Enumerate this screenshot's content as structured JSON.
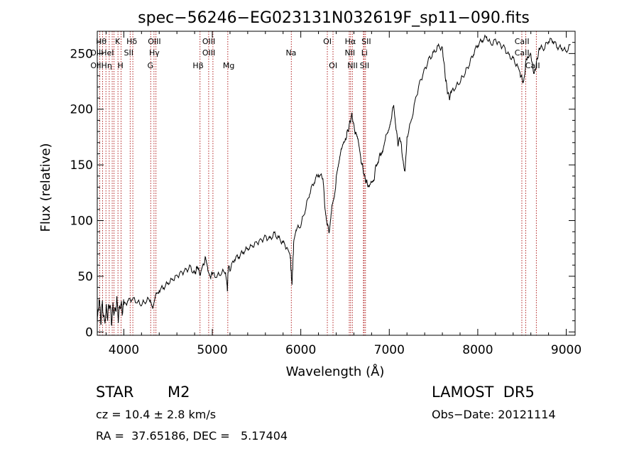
{
  "chart_data": {
    "type": "line",
    "title": "spec−56246−EG023131N032619F_sp11−090.fits",
    "xlabel": "Wavelength (Å)",
    "ylabel": "Flux (relative)",
    "xlim": [
      3700,
      9100
    ],
    "ylim": [
      -3,
      270
    ],
    "x_ticks": [
      4000,
      5000,
      6000,
      7000,
      8000,
      9000
    ],
    "y_ticks": [
      0,
      50,
      100,
      150,
      200,
      250
    ],
    "grid": false,
    "line_color": "#000000",
    "marker_color": "#b22222",
    "series": [
      {
        "x": [
          3700,
          3720,
          3740,
          3760,
          3780,
          3800,
          3820,
          3840,
          3860,
          3880,
          3900,
          3920,
          3940,
          3960,
          3980,
          4000,
          4050,
          4100,
          4150,
          4200,
          4250,
          4300,
          4330,
          4360,
          4400,
          4450,
          4500,
          4550,
          4600,
          4650,
          4700,
          4750,
          4800,
          4820,
          4850,
          4870,
          4900,
          4920,
          4950,
          4980,
          5000,
          5050,
          5100,
          5150,
          5170,
          5180,
          5200,
          5250,
          5300,
          5350,
          5400,
          5450,
          5500,
          5550,
          5600,
          5650,
          5700,
          5750,
          5800,
          5850,
          5880,
          5890,
          5900,
          5910,
          5920,
          5950,
          6000,
          6050,
          6100,
          6150,
          6200,
          6250,
          6270,
          6300,
          6320,
          6350,
          6380,
          6400,
          6430,
          6460,
          6500,
          6520,
          6540,
          6560,
          6580,
          6600,
          6620,
          6650,
          6680,
          6700,
          6720,
          6740,
          6760,
          6800,
          6830,
          6850,
          6880,
          6900,
          6930,
          6960,
          7000,
          7030,
          7050,
          7080,
          7100,
          7120,
          7140,
          7160,
          7180,
          7200,
          7250,
          7300,
          7350,
          7400,
          7450,
          7500,
          7550,
          7600,
          7620,
          7640,
          7660,
          7680,
          7700,
          7750,
          7800,
          7850,
          7900,
          7950,
          8000,
          8050,
          8100,
          8150,
          8200,
          8250,
          8300,
          8350,
          8400,
          8450,
          8480,
          8500,
          8520,
          8540,
          8560,
          8600,
          8620,
          8640,
          8660,
          8680,
          8700,
          8750,
          8800,
          8850,
          8900,
          8950,
          9000,
          9050
        ],
        "y": [
          5,
          30,
          10,
          25,
          8,
          20,
          15,
          26,
          10,
          22,
          18,
          28,
          12,
          25,
          20,
          24,
          28,
          30,
          27,
          25,
          28,
          30,
          22,
          32,
          38,
          40,
          44,
          47,
          50,
          53,
          55,
          58,
          52,
          57,
          54,
          52,
          60,
          66,
          55,
          50,
          52,
          50,
          53,
          55,
          37,
          58,
          56,
          66,
          68,
          72,
          75,
          77,
          80,
          82,
          85,
          83,
          88,
          84,
          80,
          75,
          70,
          55,
          43,
          60,
          80,
          92,
          96,
          110,
          125,
          135,
          142,
          138,
          115,
          96,
          90,
          112,
          120,
          138,
          150,
          165,
          170,
          178,
          182,
          190,
          195,
          185,
          178,
          170,
          155,
          148,
          140,
          135,
          132,
          135,
          138,
          150,
          155,
          160,
          165,
          175,
          185,
          195,
          205,
          180,
          168,
          175,
          165,
          150,
          145,
          175,
          190,
          210,
          225,
          235,
          245,
          250,
          256,
          255,
          240,
          225,
          215,
          210,
          215,
          220,
          225,
          232,
          240,
          250,
          258,
          262,
          265,
          258,
          262,
          258,
          255,
          248,
          245,
          238,
          232,
          228,
          224,
          240,
          248,
          250,
          238,
          232,
          240,
          248,
          255,
          255,
          262,
          262,
          256,
          255,
          252,
          258
        ]
      }
    ],
    "lines": [
      {
        "x": 3728,
        "label": "OII"
      },
      {
        "x": 3760,
        "label": "Hθ"
      },
      {
        "x": 3798,
        "label": ""
      },
      {
        "x": 3835,
        "label": ""
      },
      {
        "x": 3869,
        "label": "HeI"
      },
      {
        "x": 3889,
        "label": "Hη"
      },
      {
        "x": 3934,
        "label": "K"
      },
      {
        "x": 3969,
        "label": "H"
      },
      {
        "x": 4072,
        "label": "SII"
      },
      {
        "x": 4102,
        "label": "Hδ"
      },
      {
        "x": 4304,
        "label": "G"
      },
      {
        "x": 4341,
        "label": "Hγ"
      },
      {
        "x": 4363,
        "label": "OIII"
      },
      {
        "x": 4861,
        "label": "Hβ"
      },
      {
        "x": 4959,
        "label": "OIII"
      },
      {
        "x": 5007,
        "label": "OIII"
      },
      {
        "x": 5175,
        "label": "Mg"
      },
      {
        "x": 5893,
        "label": "Na"
      },
      {
        "x": 6300,
        "label": "OI"
      },
      {
        "x": 6364,
        "label": "OI"
      },
      {
        "x": 6548,
        "label": "NII"
      },
      {
        "x": 6563,
        "label": "Hα"
      },
      {
        "x": 6583,
        "label": "NII"
      },
      {
        "x": 6708,
        "label": "Li"
      },
      {
        "x": 6716,
        "label": "SII"
      },
      {
        "x": 6731,
        "label": "SII"
      },
      {
        "x": 8498,
        "label": "CaII"
      },
      {
        "x": 8542,
        "label": "CaII"
      },
      {
        "x": 8662,
        "label": "CaII"
      }
    ],
    "line_labels": [
      {
        "text": "Hθ",
        "x": 3745,
        "row": 1
      },
      {
        "text": "K",
        "x": 3930,
        "row": 1
      },
      {
        "text": "Hδ",
        "x": 4090,
        "row": 1
      },
      {
        "text": "OIII",
        "x": 4345,
        "row": 1
      },
      {
        "text": "OIII",
        "x": 4960,
        "row": 1
      },
      {
        "text": "OI",
        "x": 6300,
        "row": 1
      },
      {
        "text": "Hα",
        "x": 6560,
        "row": 1
      },
      {
        "text": "SII",
        "x": 6740,
        "row": 1
      },
      {
        "text": "CaII",
        "x": 8500,
        "row": 1
      },
      {
        "text": "OIIHeI",
        "x": 3755,
        "row": 2
      },
      {
        "text": "SII",
        "x": 4055,
        "row": 2
      },
      {
        "text": "Hγ",
        "x": 4345,
        "row": 2
      },
      {
        "text": "OIII",
        "x": 4960,
        "row": 2
      },
      {
        "text": "NII",
        "x": 6555,
        "row": 2
      },
      {
        "text": "Li",
        "x": 6720,
        "row": 2
      },
      {
        "text": "CaII",
        "x": 8500,
        "row": 2
      },
      {
        "text": "OIIHη",
        "x": 3745,
        "row": 3
      },
      {
        "text": "H",
        "x": 3962,
        "row": 3
      },
      {
        "text": "G",
        "x": 4300,
        "row": 3
      },
      {
        "text": "Hβ",
        "x": 4840,
        "row": 3
      },
      {
        "text": "Mg",
        "x": 5185,
        "row": 3
      },
      {
        "text": "Na",
        "x": 5890,
        "row": 2
      },
      {
        "text": "OI",
        "x": 6365,
        "row": 3
      },
      {
        "text": "NII",
        "x": 6585,
        "row": 3
      },
      {
        "text": "SII",
        "x": 6720,
        "row": 3
      },
      {
        "text": "CaII",
        "x": 8620,
        "row": 3
      }
    ]
  },
  "info": {
    "object_class": "STAR",
    "subclass": "M2",
    "survey": "LAMOST  DR5",
    "cz": "cz = 10.4 ± 2.8 km/s",
    "obs_date": "Obs−Date: 20121114",
    "coords": "RA =  37.65186, DEC =   5.17404"
  }
}
